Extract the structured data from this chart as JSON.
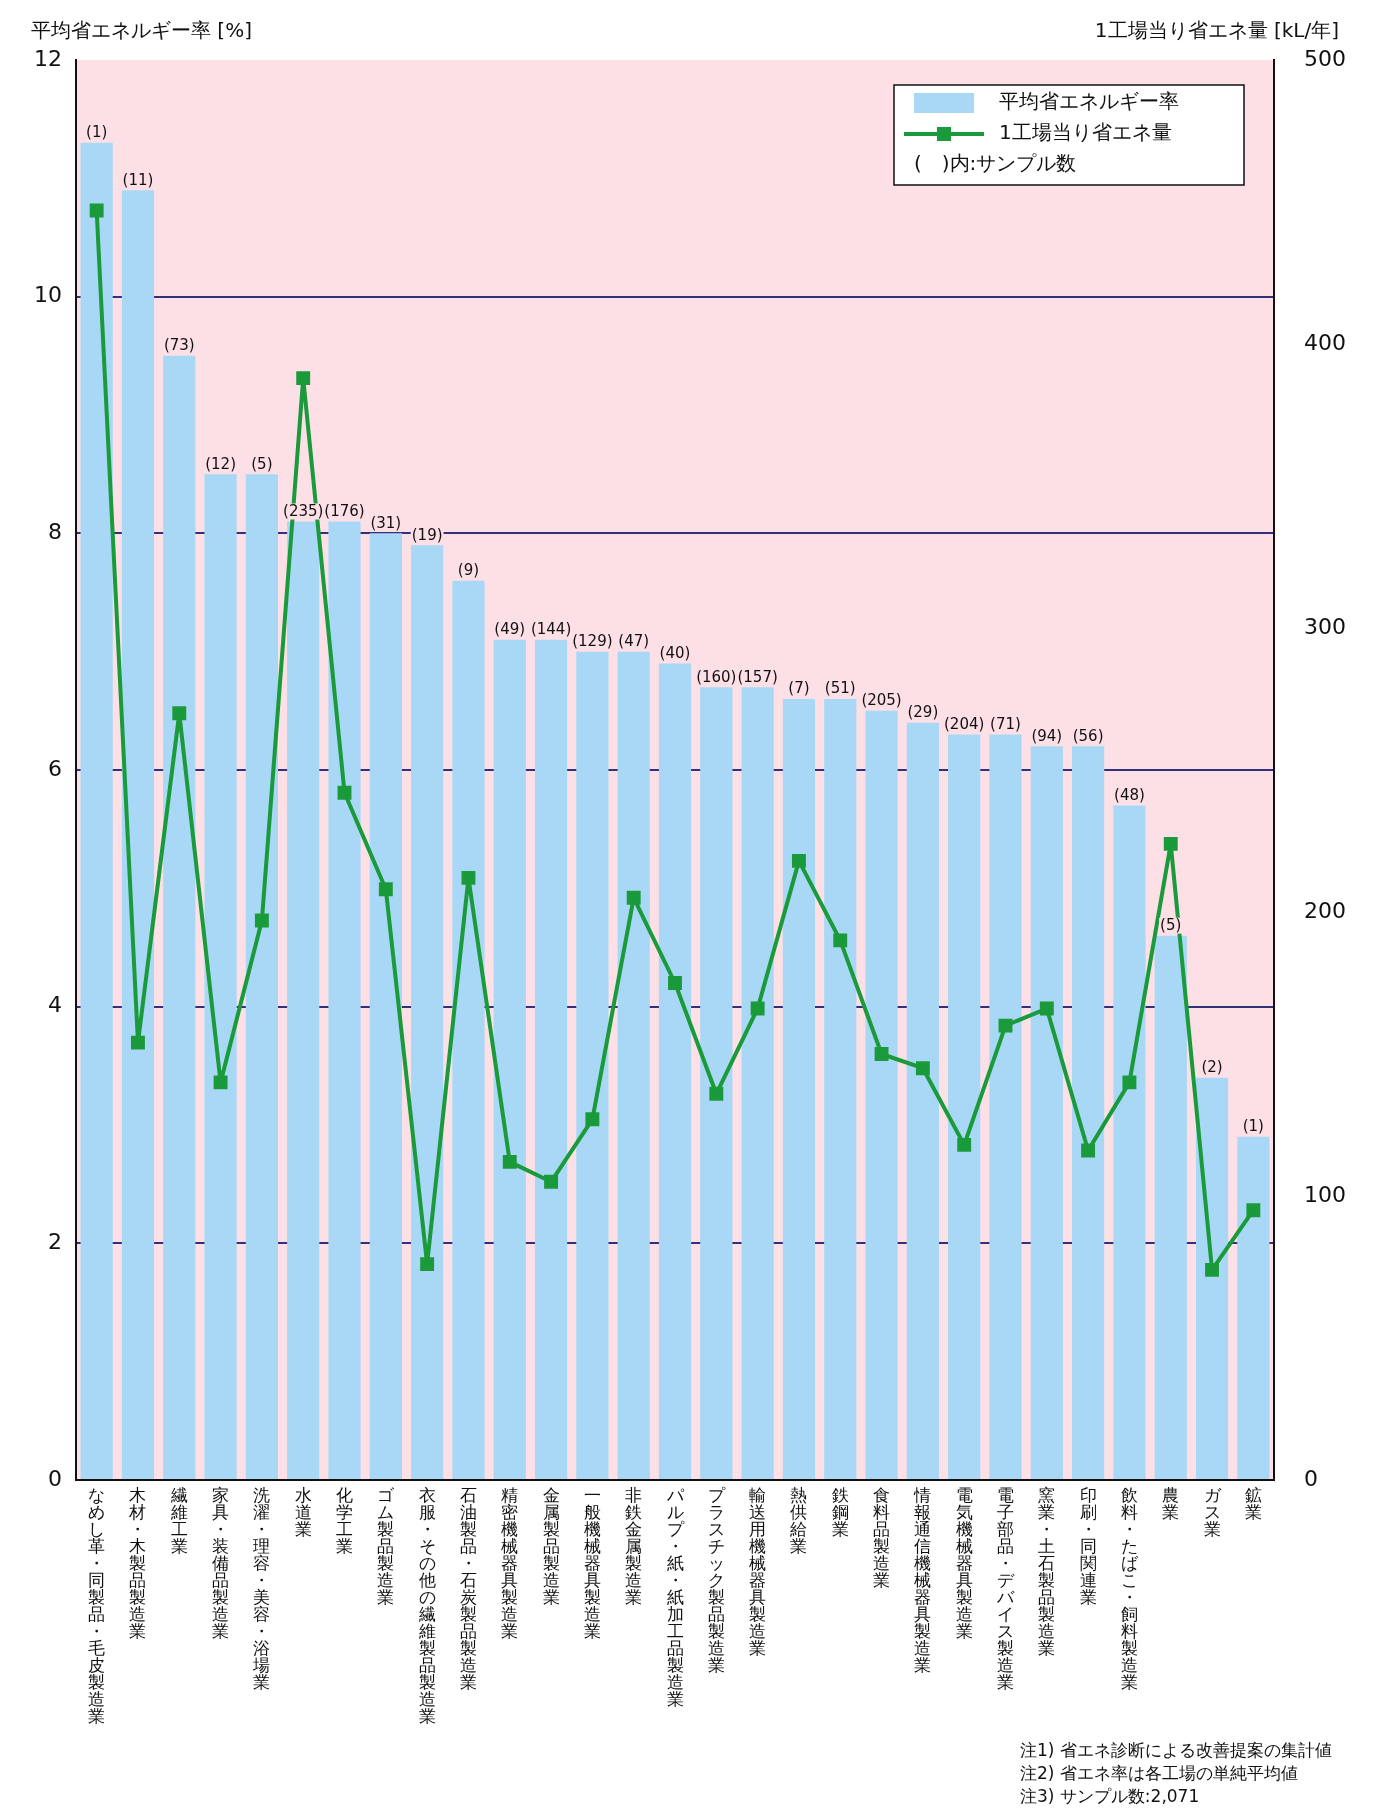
{
  "chart_data": {
    "type": "bar",
    "ylabel": "平均省エネルギー率 [%]",
    "y2label": "1工場当り省エネ量 [kL/年]",
    "categories": [
      "なめし革・同製品・毛皮製造業",
      "木材・木製品製造業",
      "繊維工業",
      "家具・装備品製造業",
      "洗濯・理容・美容・浴場業",
      "水道業",
      "化学工業",
      "ゴム製品製造業",
      "衣服・その他の繊維製品製造業",
      "石油製品・石炭製品製造業",
      "精密機械器具製造業",
      "金属製品製造業",
      "一般機械器具製造業",
      "非鉄金属製造業",
      "パルプ・紙・紙加工品製造業",
      "プラスチック製品製造業",
      "輸送用機械器具製造業",
      "熱供給業",
      "鉄鋼業",
      "食料品製造業",
      "情報通信機械器具製造業",
      "電気機械器具製造業",
      "電子部品・デバイス製造業",
      "窯業・土石製品製造業",
      "印刷・同関連業",
      "飲料・たばこ・飼料製造業",
      "農業",
      "ガス業",
      "鉱業"
    ],
    "series": [
      {
        "name": "平均省エネルギー率",
        "color": "#a8d8f5",
        "values": [
          11.3,
          10.9,
          9.5,
          8.5,
          8.5,
          8.1,
          8.1,
          8.0,
          7.9,
          7.6,
          7.1,
          7.1,
          7.0,
          7.0,
          6.9,
          6.7,
          6.7,
          6.6,
          6.6,
          6.5,
          6.4,
          6.3,
          6.3,
          6.2,
          6.2,
          5.7,
          4.6,
          3.4,
          2.9
        ]
      },
      {
        "name": "1工場当り省エネ量",
        "type": "line",
        "axis": "y2",
        "color": "#1a9a3a",
        "marker": "square",
        "values": [
          447,
          154,
          270,
          140,
          197,
          388,
          242,
          208,
          76,
          212,
          112,
          105,
          127,
          205,
          175,
          136,
          166,
          218,
          190,
          150,
          145,
          118,
          160,
          166,
          116,
          140,
          224,
          74,
          95
        ]
      }
    ],
    "ylim": [
      0,
      12
    ],
    "yticks": [
      0,
      2,
      4,
      6,
      8,
      10,
      12
    ],
    "y2lim": [
      0,
      500
    ],
    "y2ticks": [
      0,
      100,
      200,
      300,
      400,
      500
    ],
    "grid": "y",
    "legend": "top right",
    "annotations": [
      "(　)内:サンプル数",
      "注1) 省エネ診断による改善提案の集計値",
      "注2) 省エネ率は各工場の単純平均値",
      "注3) サンプル数:2,071",
      {
        "text": "(1)",
        "x": "なめし革・同製品・毛皮製造業",
        "y": 11.3
      },
      {
        "text": "(11)",
        "x": "木材・木製品製造業",
        "y": 10.9
      },
      {
        "text": "(73)",
        "x": "繊維工業",
        "y": 9.5
      },
      {
        "text": "(12)",
        "x": "家具・装備品製造業",
        "y": 8.5
      },
      {
        "text": "(5)",
        "x": "洗濯・理容・美容・浴場業",
        "y": 8.5
      },
      {
        "text": "(235)",
        "x": "水道業",
        "y": 8.1
      },
      {
        "text": "(176)",
        "x": "化学工業",
        "y": 8.1
      },
      {
        "text": "(31)",
        "x": "ゴム製品製造業",
        "y": 8.0
      },
      {
        "text": "(19)",
        "x": "衣服・その他の繊維製品製造業",
        "y": 7.9
      },
      {
        "text": "(9)",
        "x": "石油製品・石炭製品製造業",
        "y": 7.6
      },
      {
        "text": "(49)",
        "x": "精密機械器具製造業",
        "y": 7.1
      },
      {
        "text": "(144)",
        "x": "金属製品製造業",
        "y": 7.1
      },
      {
        "text": "(129)",
        "x": "一般機械器具製造業",
        "y": 7.0
      },
      {
        "text": "(47)",
        "x": "非鉄金属製造業",
        "y": 7.0
      },
      {
        "text": "(40)",
        "x": "パルプ・紙・紙加工品製造業",
        "y": 6.9
      },
      {
        "text": "(160)",
        "x": "プラスチック製品製造業",
        "y": 6.7
      },
      {
        "text": "(157)",
        "x": "輸送用機械器具製造業",
        "y": 6.7
      },
      {
        "text": "(7)",
        "x": "熱供給業",
        "y": 6.6
      },
      {
        "text": "(51)",
        "x": "鉄鋼業",
        "y": 6.6
      },
      {
        "text": "(205)",
        "x": "食料品製造業",
        "y": 6.5
      },
      {
        "text": "(29)",
        "x": "情報通信機械器具製造業",
        "y": 6.4
      },
      {
        "text": "(204)",
        "x": "電気機械器具製造業",
        "y": 6.3
      },
      {
        "text": "(71)",
        "x": "電子部品・デバイス製造業",
        "y": 6.3
      },
      {
        "text": "(94)",
        "x": "窯業・土石製品製造業",
        "y": 6.2
      },
      {
        "text": "(56)",
        "x": "印刷・同関連業",
        "y": 6.2
      },
      {
        "text": "(48)",
        "x": "飲料・たばこ・飼料製造業",
        "y": 5.7
      },
      {
        "text": "(5)",
        "x": "農業",
        "y": 4.6
      },
      {
        "text": "(2)",
        "x": "ガス業",
        "y": 3.4
      },
      {
        "text": "(1)",
        "x": "鉱業",
        "y": 2.9
      }
    ]
  }
}
